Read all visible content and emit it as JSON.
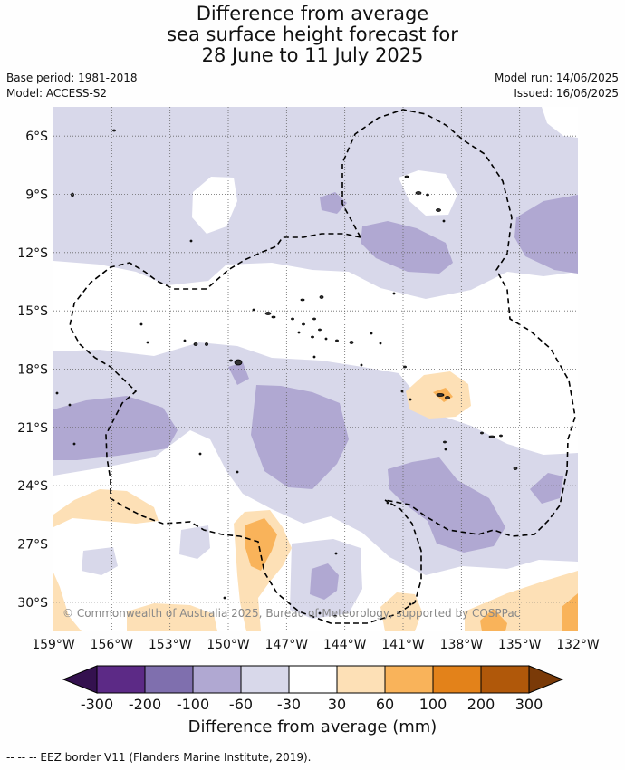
{
  "title_lines": [
    "Difference from average",
    "sea surface height forecast for",
    "28 June to 11 July 2025"
  ],
  "meta_left": [
    "Base period: 1981-2018",
    "Model: ACCESS-S2"
  ],
  "meta_right": [
    "Model run: 14/06/2025",
    "Issued: 16/06/2025"
  ],
  "map": {
    "lon_range": [
      -159,
      -132
    ],
    "lat_range": [
      -31.5,
      -4.5
    ],
    "lon_ticks": [
      -159,
      -156,
      -153,
      -150,
      -147,
      -144,
      -141,
      -138,
      -135,
      -132
    ],
    "lon_tick_labels": [
      "159°W",
      "156°W",
      "153°W",
      "150°W",
      "147°W",
      "144°W",
      "141°W",
      "138°W",
      "135°W",
      "132°W"
    ],
    "lat_ticks": [
      -6,
      -9,
      -12,
      -15,
      -18,
      -21,
      -24,
      -27,
      -30
    ],
    "lat_tick_labels": [
      "6°S",
      "9°S",
      "12°S",
      "15°S",
      "18°S",
      "21°S",
      "24°S",
      "27°S",
      "30°S"
    ],
    "gridlines": true,
    "copyright": "© Commonwealth of Australia 2025, Bureau of Meteorology, supported by COSPPac"
  },
  "colorbar": {
    "boundaries": [
      "-300",
      "-200",
      "-100",
      "-60",
      "-30",
      "30",
      "60",
      "100",
      "200",
      "300"
    ],
    "colors": [
      "#5c2a86",
      "#7f6fae",
      "#b0a8d2",
      "#d8d8ea",
      "#ffffff",
      "#fde0b6",
      "#f9b35a",
      "#e3821a",
      "#b0580a"
    ],
    "under_color": "#34114f",
    "over_color": "#7a3a08",
    "label": "Difference from average (mm)"
  },
  "footnote": "--  --  -- EEZ border V11 (Flanders Marine Institute, 2019)."
}
